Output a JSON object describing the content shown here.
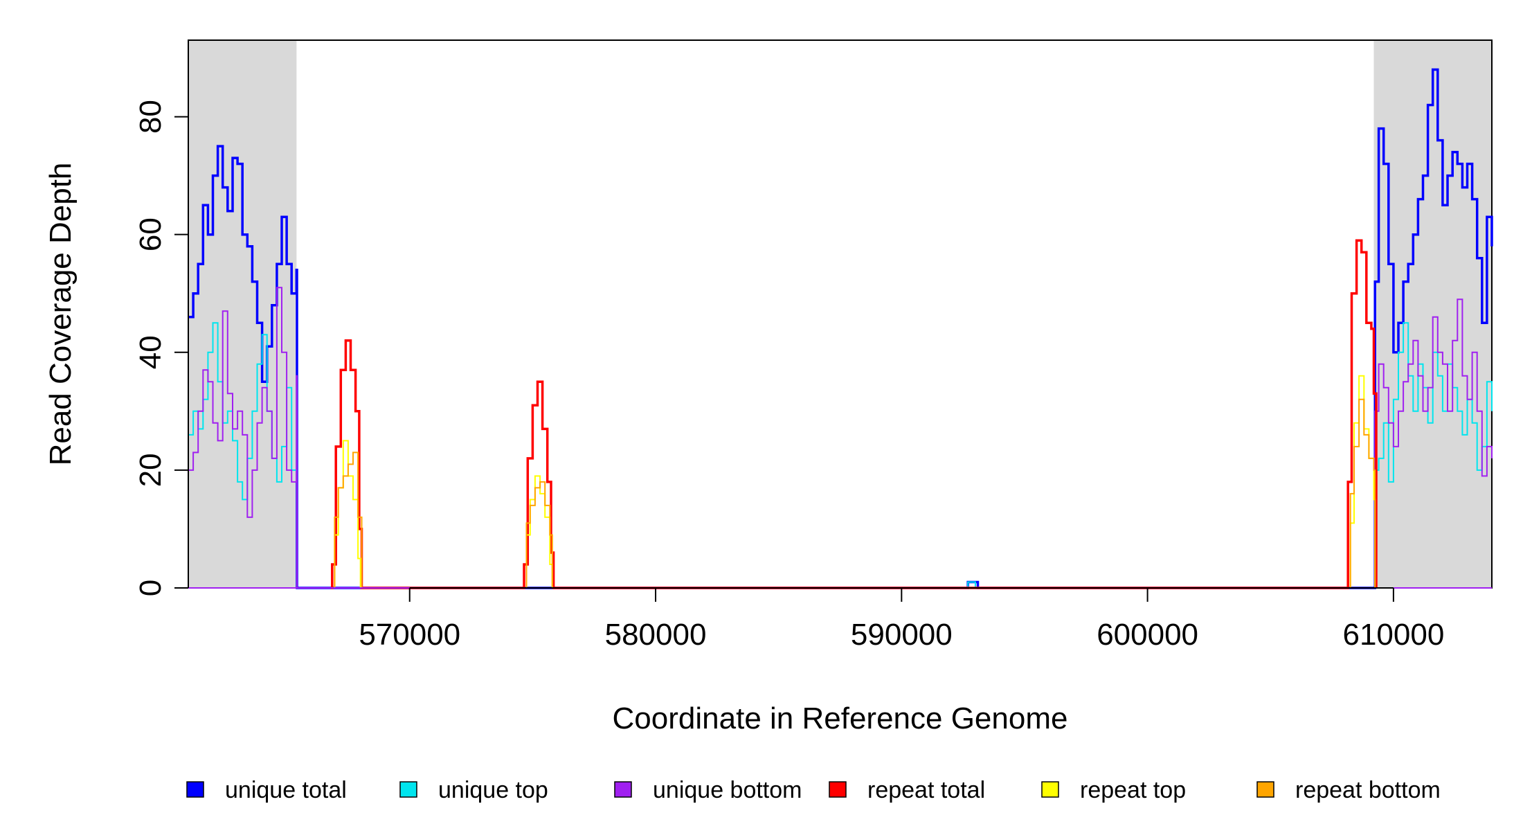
{
  "chart_data": {
    "type": "line",
    "title": "",
    "xlabel": "Coordinate in Reference Genome",
    "ylabel": "Read Coverage Depth",
    "xlim": [
      561000,
      614000
    ],
    "ylim": [
      0,
      93
    ],
    "x_ticks": [
      570000,
      580000,
      590000,
      600000,
      610000
    ],
    "x_tick_labels": [
      "570000",
      "580000",
      "590000",
      "600000",
      "610000"
    ],
    "y_ticks": [
      0,
      20,
      40,
      60,
      80
    ],
    "y_tick_labels": [
      "0",
      "20",
      "40",
      "60",
      "80"
    ],
    "shaded_regions": [
      [
        561000,
        565400
      ],
      [
        609200,
        614000
      ]
    ],
    "grid": false,
    "legend_position": "bottom",
    "series": [
      {
        "name": "unique total",
        "color": "#0000ff",
        "points": [
          [
            561000,
            46
          ],
          [
            561200,
            50
          ],
          [
            561400,
            55
          ],
          [
            561600,
            65
          ],
          [
            561800,
            60
          ],
          [
            562000,
            70
          ],
          [
            562200,
            75
          ],
          [
            562400,
            68
          ],
          [
            562600,
            64
          ],
          [
            562800,
            73
          ],
          [
            563000,
            72
          ],
          [
            563200,
            60
          ],
          [
            563400,
            58
          ],
          [
            563600,
            52
          ],
          [
            563800,
            45
          ],
          [
            564000,
            35
          ],
          [
            564200,
            41
          ],
          [
            564400,
            48
          ],
          [
            564600,
            55
          ],
          [
            564800,
            63
          ],
          [
            565000,
            55
          ],
          [
            565200,
            50
          ],
          [
            565400,
            54
          ],
          [
            565420,
            0
          ],
          [
            592500,
            0
          ],
          [
            592700,
            1
          ],
          [
            593000,
            1
          ],
          [
            593100,
            0
          ],
          [
            609200,
            0
          ],
          [
            609250,
            52
          ],
          [
            609400,
            78
          ],
          [
            609600,
            72
          ],
          [
            609800,
            55
          ],
          [
            610000,
            40
          ],
          [
            610200,
            45
          ],
          [
            610400,
            52
          ],
          [
            610600,
            55
          ],
          [
            610800,
            60
          ],
          [
            611000,
            66
          ],
          [
            611200,
            70
          ],
          [
            611400,
            82
          ],
          [
            611600,
            88
          ],
          [
            611800,
            76
          ],
          [
            612000,
            65
          ],
          [
            612200,
            70
          ],
          [
            612400,
            74
          ],
          [
            612600,
            72
          ],
          [
            612800,
            68
          ],
          [
            613000,
            72
          ],
          [
            613200,
            66
          ],
          [
            613400,
            56
          ],
          [
            613600,
            45
          ],
          [
            613800,
            63
          ],
          [
            614000,
            58
          ]
        ]
      },
      {
        "name": "unique top",
        "color": "#00e5ee",
        "points": [
          [
            561000,
            26
          ],
          [
            561200,
            30
          ],
          [
            561400,
            27
          ],
          [
            561600,
            32
          ],
          [
            561800,
            40
          ],
          [
            562000,
            45
          ],
          [
            562200,
            35
          ],
          [
            562400,
            28
          ],
          [
            562600,
            30
          ],
          [
            562800,
            25
          ],
          [
            563000,
            18
          ],
          [
            563200,
            15
          ],
          [
            563400,
            22
          ],
          [
            563600,
            30
          ],
          [
            563800,
            38
          ],
          [
            564000,
            43
          ],
          [
            564200,
            30
          ],
          [
            564400,
            22
          ],
          [
            564600,
            18
          ],
          [
            564800,
            24
          ],
          [
            565000,
            34
          ],
          [
            565200,
            20
          ],
          [
            565400,
            34
          ],
          [
            565420,
            0
          ],
          [
            592600,
            0
          ],
          [
            592700,
            1
          ],
          [
            592900,
            1
          ],
          [
            593000,
            0
          ],
          [
            609200,
            0
          ],
          [
            609250,
            20
          ],
          [
            609400,
            22
          ],
          [
            609600,
            28
          ],
          [
            609800,
            18
          ],
          [
            610000,
            32
          ],
          [
            610200,
            40
          ],
          [
            610400,
            45
          ],
          [
            610600,
            36
          ],
          [
            610800,
            30
          ],
          [
            611000,
            38
          ],
          [
            611200,
            34
          ],
          [
            611400,
            28
          ],
          [
            611600,
            40
          ],
          [
            611800,
            36
          ],
          [
            612000,
            30
          ],
          [
            612200,
            38
          ],
          [
            612400,
            34
          ],
          [
            612600,
            30
          ],
          [
            612800,
            26
          ],
          [
            613000,
            32
          ],
          [
            613200,
            28
          ],
          [
            613400,
            20
          ],
          [
            613600,
            24
          ],
          [
            613800,
            35
          ],
          [
            614000,
            30
          ]
        ]
      },
      {
        "name": "unique bottom",
        "color": "#a020f0",
        "points": [
          [
            561000,
            20
          ],
          [
            561200,
            23
          ],
          [
            561400,
            30
          ],
          [
            561600,
            37
          ],
          [
            561800,
            35
          ],
          [
            562000,
            28
          ],
          [
            562200,
            25
          ],
          [
            562400,
            47
          ],
          [
            562600,
            33
          ],
          [
            562800,
            27
          ],
          [
            563000,
            30
          ],
          [
            563200,
            26
          ],
          [
            563400,
            12
          ],
          [
            563600,
            20
          ],
          [
            563800,
            28
          ],
          [
            564000,
            34
          ],
          [
            564200,
            30
          ],
          [
            564400,
            22
          ],
          [
            564600,
            51
          ],
          [
            564800,
            40
          ],
          [
            565000,
            20
          ],
          [
            565200,
            18
          ],
          [
            565400,
            36
          ],
          [
            565420,
            0
          ],
          [
            609200,
            0
          ],
          [
            609250,
            30
          ],
          [
            609400,
            38
          ],
          [
            609600,
            34
          ],
          [
            609800,
            28
          ],
          [
            610000,
            24
          ],
          [
            610200,
            30
          ],
          [
            610400,
            35
          ],
          [
            610600,
            38
          ],
          [
            610800,
            42
          ],
          [
            611000,
            36
          ],
          [
            611200,
            30
          ],
          [
            611400,
            34
          ],
          [
            611600,
            46
          ],
          [
            611800,
            40
          ],
          [
            612000,
            38
          ],
          [
            612200,
            30
          ],
          [
            612400,
            42
          ],
          [
            612600,
            49
          ],
          [
            612800,
            36
          ],
          [
            613000,
            32
          ],
          [
            613200,
            40
          ],
          [
            613400,
            30
          ],
          [
            613600,
            19
          ],
          [
            613800,
            24
          ],
          [
            614000,
            22
          ]
        ]
      },
      {
        "name": "repeat total",
        "color": "#ff0000",
        "points": [
          [
            566800,
            0
          ],
          [
            566850,
            4
          ],
          [
            567000,
            24
          ],
          [
            567200,
            37
          ],
          [
            567400,
            42
          ],
          [
            567600,
            37
          ],
          [
            567800,
            30
          ],
          [
            567950,
            10
          ],
          [
            568050,
            0
          ],
          [
            574600,
            0
          ],
          [
            574650,
            4
          ],
          [
            574800,
            22
          ],
          [
            575000,
            31
          ],
          [
            575200,
            35
          ],
          [
            575400,
            27
          ],
          [
            575600,
            18
          ],
          [
            575750,
            6
          ],
          [
            575850,
            0
          ],
          [
            608100,
            0
          ],
          [
            608150,
            18
          ],
          [
            608300,
            50
          ],
          [
            608500,
            59
          ],
          [
            608700,
            57
          ],
          [
            608900,
            45
          ],
          [
            609100,
            44
          ],
          [
            609200,
            33
          ],
          [
            609300,
            0
          ]
        ]
      },
      {
        "name": "repeat top",
        "color": "#ffff00",
        "points": [
          [
            566850,
            0
          ],
          [
            566950,
            9
          ],
          [
            567100,
            17
          ],
          [
            567300,
            25
          ],
          [
            567500,
            19
          ],
          [
            567700,
            15
          ],
          [
            567900,
            5
          ],
          [
            568000,
            0
          ],
          [
            574650,
            0
          ],
          [
            574750,
            9
          ],
          [
            574900,
            15
          ],
          [
            575100,
            19
          ],
          [
            575300,
            16
          ],
          [
            575500,
            12
          ],
          [
            575700,
            4
          ],
          [
            575800,
            0
          ],
          [
            608150,
            0
          ],
          [
            608250,
            11
          ],
          [
            608400,
            28
          ],
          [
            608600,
            36
          ],
          [
            608800,
            27
          ],
          [
            609000,
            22
          ],
          [
            609200,
            15
          ],
          [
            609250,
            0
          ]
        ]
      },
      {
        "name": "repeat bottom",
        "color": "#ffa500",
        "points": [
          [
            566850,
            0
          ],
          [
            566950,
            12
          ],
          [
            567100,
            17
          ],
          [
            567300,
            19
          ],
          [
            567500,
            21
          ],
          [
            567700,
            23
          ],
          [
            567900,
            12
          ],
          [
            568050,
            0
          ],
          [
            574650,
            0
          ],
          [
            574750,
            11
          ],
          [
            574900,
            14
          ],
          [
            575100,
            17
          ],
          [
            575300,
            18
          ],
          [
            575500,
            14
          ],
          [
            575700,
            9
          ],
          [
            575800,
            0
          ],
          [
            608150,
            0
          ],
          [
            608250,
            16
          ],
          [
            608400,
            24
          ],
          [
            608600,
            32
          ],
          [
            608800,
            26
          ],
          [
            609000,
            22
          ],
          [
            609200,
            20
          ],
          [
            609250,
            0
          ]
        ]
      }
    ]
  }
}
